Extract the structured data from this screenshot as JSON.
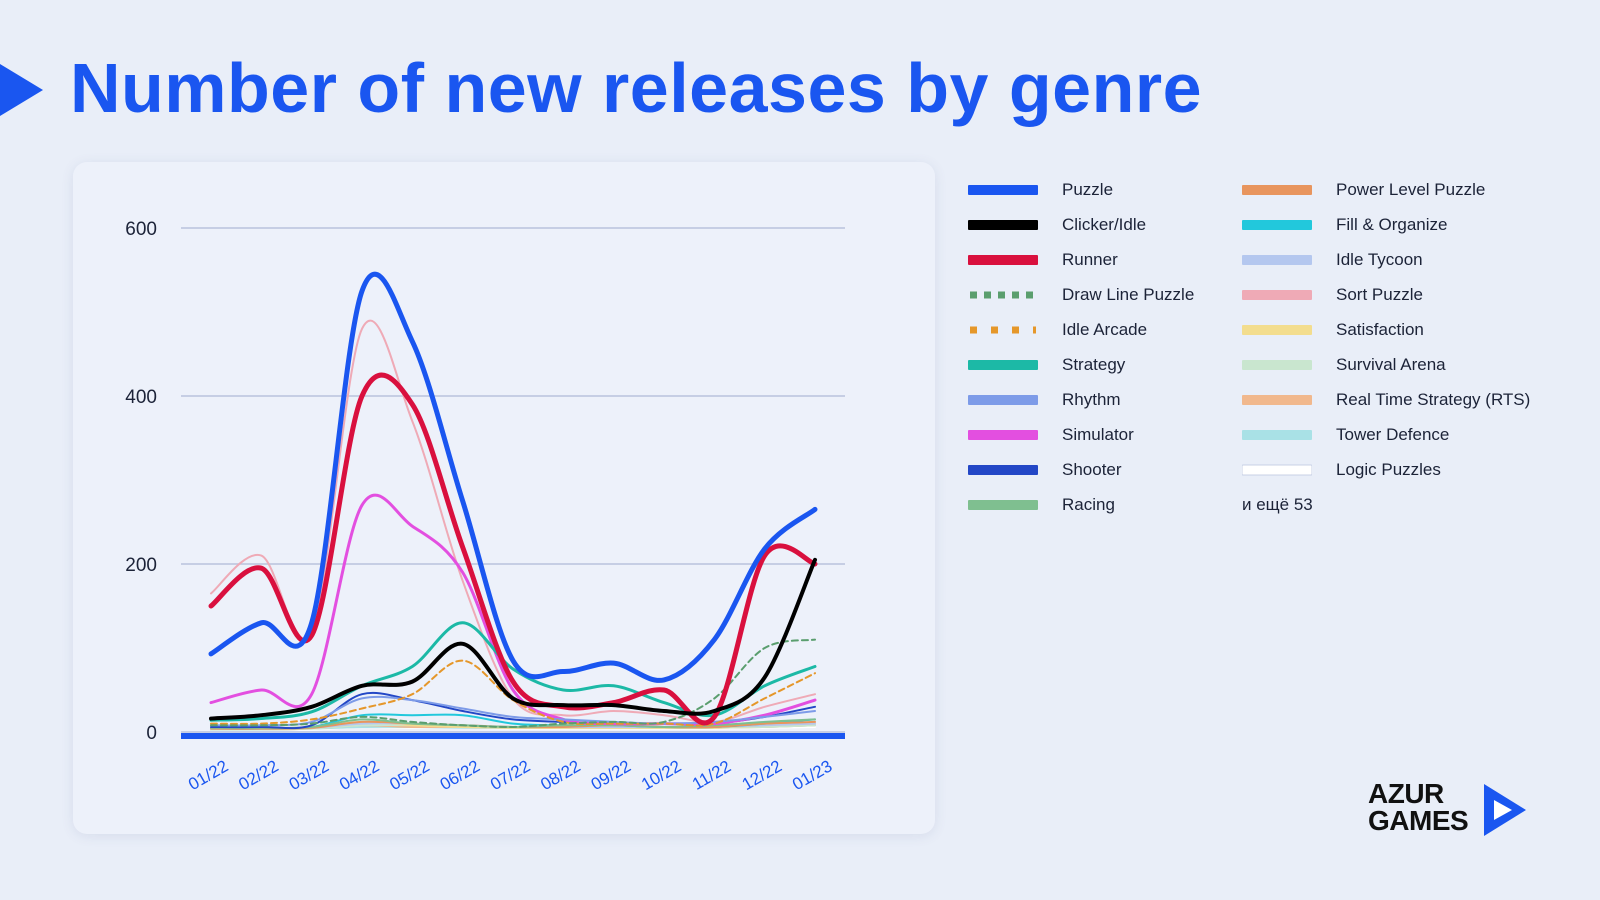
{
  "title": "Number of new releases by genre",
  "more_label": "и ещё 53",
  "logo": {
    "line1": "AZUR",
    "line2": "GAMES"
  },
  "colors": {
    "accent": "#1a56f0",
    "background": "#e9eef8"
  },
  "chart_data": {
    "type": "line",
    "categories": [
      "01/22",
      "02/22",
      "03/22",
      "04/22",
      "05/22",
      "06/22",
      "07/22",
      "08/22",
      "09/22",
      "10/22",
      "11/22",
      "12/22",
      "01/23"
    ],
    "yticks": [
      0,
      200,
      400,
      600
    ],
    "ylim": [
      0,
      600
    ],
    "grid": true,
    "legend_position": "right",
    "series": [
      {
        "name": "Puzzle",
        "color": "#1a56f0",
        "width": 5,
        "values": [
          93,
          130,
          130,
          525,
          465,
          275,
          85,
          72,
          82,
          62,
          110,
          218,
          265
        ]
      },
      {
        "name": "Clicker/Idle",
        "color": "#000000",
        "width": 4,
        "values": [
          16,
          20,
          30,
          55,
          60,
          105,
          40,
          32,
          32,
          25,
          25,
          65,
          205
        ]
      },
      {
        "name": "Runner",
        "color": "#d9103e",
        "width": 5,
        "values": [
          150,
          195,
          115,
          400,
          390,
          220,
          60,
          30,
          35,
          50,
          18,
          210,
          200
        ]
      },
      {
        "name": "Draw Line Puzzle",
        "color": "#5a9e6e",
        "width": 2,
        "dash": "6,4",
        "values": [
          8,
          8,
          10,
          18,
          12,
          8,
          6,
          10,
          12,
          12,
          40,
          100,
          110
        ]
      },
      {
        "name": "Idle Arcade",
        "color": "#e5972a",
        "width": 2,
        "dash": "6,4",
        "values": [
          10,
          10,
          15,
          28,
          45,
          85,
          38,
          12,
          10,
          10,
          10,
          40,
          70
        ]
      },
      {
        "name": "Strategy",
        "color": "#1cb9a6",
        "width": 3,
        "values": [
          14,
          16,
          24,
          55,
          78,
          130,
          75,
          50,
          55,
          35,
          20,
          55,
          78
        ]
      },
      {
        "name": "Rhythm",
        "color": "#7d9be8",
        "width": 2,
        "values": [
          8,
          8,
          12,
          40,
          38,
          28,
          18,
          15,
          12,
          10,
          12,
          18,
          25
        ]
      },
      {
        "name": "Simulator",
        "color": "#e34fe0",
        "width": 3,
        "values": [
          35,
          50,
          45,
          270,
          245,
          190,
          50,
          15,
          10,
          10,
          10,
          20,
          38
        ]
      },
      {
        "name": "Shooter",
        "color": "#2347c6",
        "width": 2,
        "values": [
          6,
          6,
          8,
          45,
          38,
          25,
          15,
          12,
          10,
          10,
          10,
          18,
          30
        ]
      },
      {
        "name": "Racing",
        "color": "#7fbf90",
        "width": 2,
        "values": [
          5,
          5,
          6,
          15,
          10,
          8,
          6,
          8,
          8,
          6,
          8,
          12,
          15
        ]
      },
      {
        "name": "Power Level Puzzle",
        "color": "#e8955e",
        "width": 2,
        "values": [
          4,
          4,
          5,
          12,
          10,
          8,
          6,
          6,
          8,
          6,
          6,
          10,
          12
        ]
      },
      {
        "name": "Fill & Organize",
        "color": "#22c8dc",
        "width": 2,
        "values": [
          4,
          4,
          6,
          20,
          20,
          20,
          10,
          8,
          8,
          6,
          6,
          10,
          15
        ]
      },
      {
        "name": "Idle Tycoon",
        "color": "#b4c7ef",
        "width": 2,
        "values": [
          4,
          4,
          5,
          10,
          10,
          8,
          6,
          6,
          6,
          6,
          6,
          8,
          10
        ]
      },
      {
        "name": "Sort Puzzle",
        "color": "#efaab6",
        "width": 2,
        "values": [
          165,
          210,
          120,
          480,
          370,
          180,
          40,
          20,
          25,
          20,
          12,
          30,
          45
        ]
      },
      {
        "name": "Satisfaction",
        "color": "#f3dd8e",
        "width": 2,
        "values": [
          4,
          4,
          5,
          12,
          8,
          6,
          5,
          5,
          5,
          5,
          5,
          8,
          10
        ]
      },
      {
        "name": "Survival Arena",
        "color": "#c9e6cf",
        "width": 2,
        "values": [
          3,
          3,
          4,
          8,
          8,
          6,
          5,
          5,
          5,
          5,
          5,
          6,
          8
        ]
      },
      {
        "name": "Real Time Strategy (RTS)",
        "color": "#f1b88d",
        "width": 2,
        "values": [
          3,
          3,
          4,
          8,
          6,
          6,
          5,
          5,
          5,
          5,
          5,
          6,
          8
        ]
      },
      {
        "name": "Tower Defence",
        "color": "#a9e1e6",
        "width": 2,
        "values": [
          3,
          3,
          4,
          6,
          6,
          5,
          5,
          5,
          5,
          5,
          5,
          6,
          8
        ]
      },
      {
        "name": "Logic Puzzles",
        "color": "#ffffff",
        "width": 2,
        "values": [
          3,
          3,
          3,
          6,
          5,
          5,
          4,
          4,
          4,
          4,
          4,
          5,
          6
        ]
      }
    ]
  }
}
